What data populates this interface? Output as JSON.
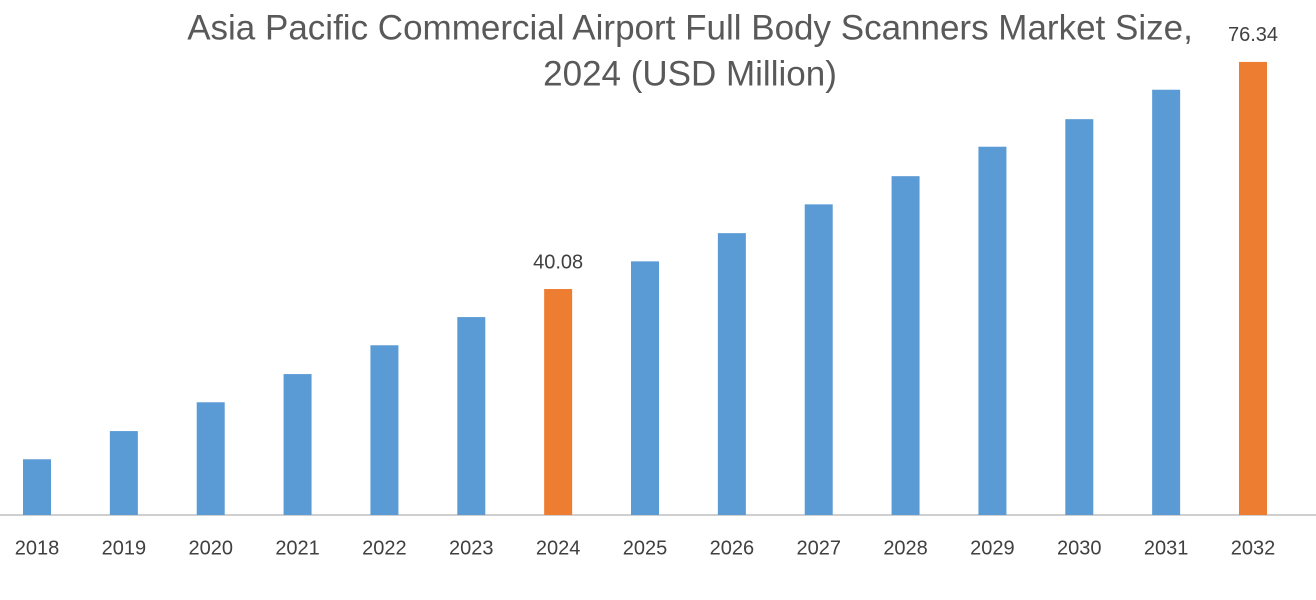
{
  "chart_data": {
    "type": "bar",
    "title": [
      "Asia Pacific Commercial Airport Full Body Scanners Market Size,",
      "2024 (USD Million)"
    ],
    "categories": [
      "2018",
      "2019",
      "2020",
      "2021",
      "2022",
      "2023",
      "2024",
      "2025",
      "2026",
      "2027",
      "2028",
      "2029",
      "2030",
      "2031",
      "2032"
    ],
    "values": [
      12.9,
      17.4,
      22.0,
      26.5,
      31.1,
      35.6,
      40.08,
      44.5,
      49.0,
      53.6,
      58.1,
      62.8,
      67.2,
      71.9,
      76.34
    ],
    "value_labels": [
      null,
      null,
      null,
      null,
      null,
      null,
      "40.08",
      null,
      null,
      null,
      null,
      null,
      null,
      null,
      "76.34"
    ],
    "colors": [
      "#5b9bd5",
      "#5b9bd5",
      "#5b9bd5",
      "#5b9bd5",
      "#5b9bd5",
      "#5b9bd5",
      "#ed7d31",
      "#5b9bd5",
      "#5b9bd5",
      "#5b9bd5",
      "#5b9bd5",
      "#5b9bd5",
      "#5b9bd5",
      "#5b9bd5",
      "#ed7d31"
    ],
    "ylim": [
      4,
      80
    ]
  }
}
